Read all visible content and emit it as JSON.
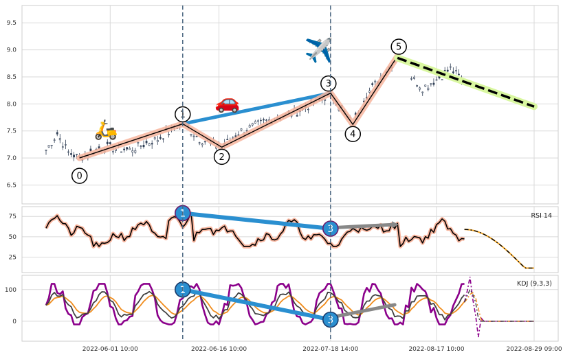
{
  "colors": {
    "panel_border": "#cccccc",
    "grid": "#d9d9d9",
    "candle": "#2f3e55",
    "wave_line": "#000000",
    "wave_glow": "#f7b59e",
    "vline": "#4a6680",
    "divergence_line": "#2a8fd0",
    "divergence_fill": "#2a8fd0",
    "gray_arrow": "#888888",
    "forecast_line": "#000000",
    "forecast_glow": "#d9f7a0",
    "rsi_line": "#000000",
    "rsi_glow": "#f7b59e",
    "rsi_forecast": "#f5a623",
    "kdj_k": "#404040",
    "kdj_d": "#f08c1c",
    "kdj_j": "#8b008b"
  },
  "icons": {
    "scooter": "scooter-icon",
    "car": "car-icon",
    "airplane": "airplane-icon"
  },
  "chart_data": [
    {
      "type": "candlestick",
      "panel": "price",
      "ylim": [
        6.15,
        9.82
      ],
      "yticks": [
        "6.5",
        "7.0",
        "7.5",
        "8.0",
        "8.5",
        "9.0",
        "9.5"
      ],
      "ytick_values": [
        6.5,
        7.0,
        7.5,
        8.0,
        8.5,
        9.0,
        9.5
      ],
      "x_tick_labels": [
        "2022-06-01 10:00",
        "2022-06-16 10:00",
        "2022-07-18 14:00",
        "2022-08-17 10:00",
        "2022-08-29 09:00"
      ],
      "bar_count": 176,
      "wave_points": [
        {
          "label": "0",
          "index": 12,
          "value": 7.0
        },
        {
          "label": "1",
          "index": 49,
          "value": 7.63
        },
        {
          "label": "2",
          "index": 63,
          "value": 7.2
        },
        {
          "label": "3",
          "index": 102,
          "value": 8.2
        },
        {
          "label": "4",
          "index": 110,
          "value": 7.62
        },
        {
          "label": "5",
          "index": 126,
          "value": 8.88
        }
      ],
      "divergence_line": [
        {
          "index": 49,
          "value": 7.63
        },
        {
          "index": 102,
          "value": 8.2
        }
      ],
      "forecast_line": [
        {
          "index": 126,
          "value": 8.85
        },
        {
          "index": 175,
          "value": 7.95
        }
      ],
      "vertical_markers": [
        49,
        102
      ]
    },
    {
      "type": "line",
      "panel": "rsi",
      "label": "RSI 14",
      "ylim": [
        6,
        87
      ],
      "yticks": [
        "25",
        "50",
        "75"
      ],
      "ytick_values": [
        25,
        50,
        75
      ],
      "divergence_points": [
        {
          "label": "1",
          "index": 49,
          "value": 79
        },
        {
          "label": "3",
          "index": 102,
          "value": 60
        }
      ],
      "gray_arrow": [
        {
          "index": 102,
          "value": 61
        },
        {
          "index": 125,
          "value": 65
        }
      ]
    },
    {
      "type": "line",
      "panel": "kdj",
      "label": "KDJ (9,3,3)",
      "ylim": [
        -63,
        145
      ],
      "yticks": [
        "0",
        "100"
      ],
      "ytick_values": [
        0,
        100
      ],
      "series": [
        {
          "name": "K"
        },
        {
          "name": "D"
        },
        {
          "name": "J"
        }
      ],
      "divergence_points": [
        {
          "label": "1",
          "index": 49,
          "value": 100
        },
        {
          "label": "3",
          "index": 102,
          "value": 5
        }
      ],
      "gray_arrow": [
        {
          "index": 102,
          "value": 12
        },
        {
          "index": 125,
          "value": 52
        }
      ]
    }
  ]
}
